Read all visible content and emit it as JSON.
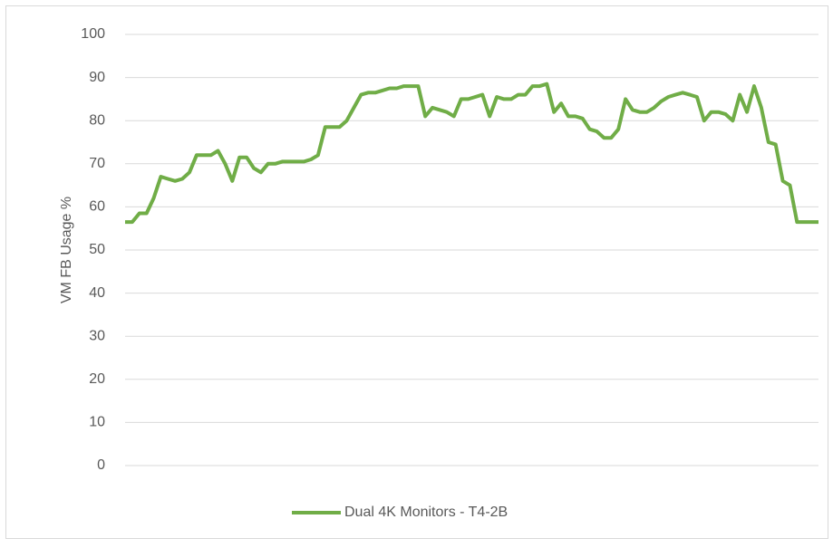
{
  "chart_data": {
    "type": "line",
    "ylabel": "VM FB Usage %",
    "ylim": [
      0,
      100
    ],
    "yticks": [
      0,
      10,
      20,
      30,
      40,
      50,
      60,
      70,
      80,
      90,
      100
    ],
    "grid": true,
    "legend": "bottom",
    "series": [
      {
        "name": "Dual 4K Monitors - T4-2B",
        "color": "#70ad47",
        "values": [
          56.5,
          56.5,
          58.5,
          58.5,
          62,
          67,
          66.5,
          66,
          66.5,
          68,
          72,
          72,
          72,
          73,
          70,
          66,
          71.5,
          71.5,
          69,
          68,
          70,
          70,
          70.5,
          70.5,
          70.5,
          70.5,
          71,
          72,
          78.5,
          78.5,
          78.5,
          80,
          83,
          86,
          86.5,
          86.5,
          87,
          87.5,
          87.5,
          88,
          88,
          88,
          81,
          83,
          82.5,
          82,
          81,
          85,
          85,
          85.5,
          86,
          81,
          85.5,
          85,
          85,
          86,
          86,
          88,
          88,
          88.5,
          82,
          84,
          81,
          81,
          80.5,
          78,
          77.5,
          76,
          76,
          78,
          85,
          82.5,
          82,
          82,
          83,
          84.5,
          85.5,
          86,
          86.5,
          86,
          85.5,
          80,
          82,
          82,
          81.5,
          80,
          86,
          82,
          88,
          83,
          75,
          74.5,
          66,
          65,
          56.5,
          56.5,
          56.5,
          56.5
        ]
      }
    ]
  }
}
